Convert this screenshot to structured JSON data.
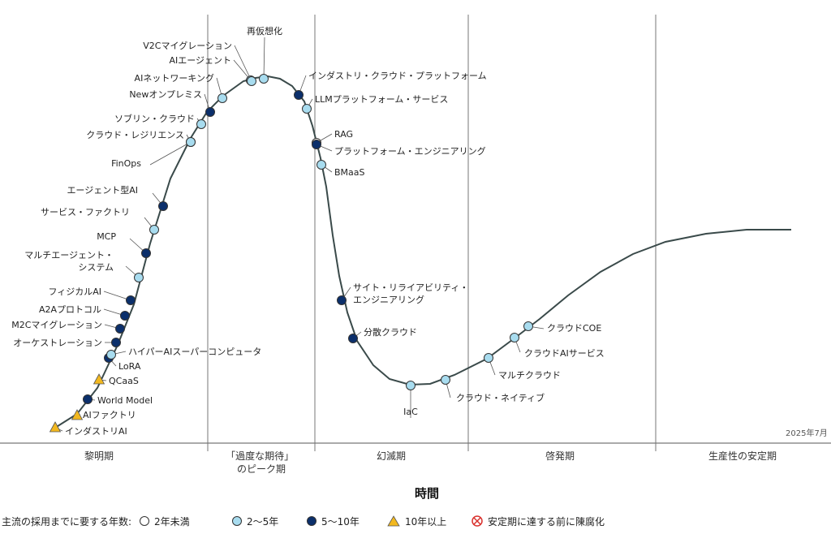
{
  "chart_data": {
    "type": "scatter",
    "xlabel": "時間",
    "date": "2025年7月",
    "phases": [
      {
        "label": "黎明期"
      },
      {
        "label": "「過度な期待」\nのピーク期"
      },
      {
        "label": "幻滅期"
      },
      {
        "label": "啓発期"
      },
      {
        "label": "生産性の安定期"
      }
    ],
    "legend": {
      "title": "主流の採用までに要する年数:",
      "items": [
        {
          "label": "2年未満",
          "key": "lt2"
        },
        {
          "label": "2〜5年",
          "key": "y2_5"
        },
        {
          "label": "5〜10年",
          "key": "y5_10"
        },
        {
          "label": "10年以上",
          "key": "gt10"
        },
        {
          "label": "安定期に達する前に陳腐化",
          "key": "obsolete"
        }
      ]
    },
    "colors": {
      "curve": "#3a4a4a",
      "lt2": "#ffffff",
      "y2_5": "#a8dcef",
      "y5_10": "#0b2f6b",
      "gt10": "#f2b81f",
      "obsolete": "#d9322e"
    },
    "points": [
      {
        "name": "インダストリAI",
        "category": "gt10"
      },
      {
        "name": "AIファクトリ",
        "category": "gt10"
      },
      {
        "name": "World Model",
        "category": "y5_10"
      },
      {
        "name": "QCaaS",
        "category": "gt10"
      },
      {
        "name": "LoRA",
        "category": "y5_10"
      },
      {
        "name": "ハイパーAIスーパーコンピュータ",
        "category": "y2_5"
      },
      {
        "name": "オーケストレーション",
        "category": "y5_10"
      },
      {
        "name": "M2Cマイグレーション",
        "category": "y5_10"
      },
      {
        "name": "A2Aプロトコル",
        "category": "y5_10"
      },
      {
        "name": "フィジカルAI",
        "category": "y5_10"
      },
      {
        "name": "マルチエージェント・\nシステム",
        "category": "y2_5"
      },
      {
        "name": "MCP",
        "category": "y5_10"
      },
      {
        "name": "サービス・ファクトリ",
        "category": "y2_5"
      },
      {
        "name": "エージェント型AI",
        "category": "y5_10"
      },
      {
        "name": "FinOps",
        "category": "y2_5"
      },
      {
        "name": "クラウド・レジリエンス",
        "category": "y2_5"
      },
      {
        "name": "ソブリン・クラウド",
        "category": "y2_5"
      },
      {
        "name": "Newオンプレミス",
        "category": "y5_10"
      },
      {
        "name": "AIネットワーキング",
        "category": "y2_5"
      },
      {
        "name": "AIエージェント",
        "category": "y2_5"
      },
      {
        "name": "V2Cマイグレーション",
        "category": "y2_5"
      },
      {
        "name": "再仮想化",
        "category": "y2_5"
      },
      {
        "name": "インダストリ・クラウド・プラットフォーム",
        "category": "y5_10"
      },
      {
        "name": "LLMプラットフォーム・サービス",
        "category": "y2_5"
      },
      {
        "name": "RAG",
        "category": "lt2"
      },
      {
        "name": "プラットフォーム・エンジニアリング",
        "category": "y5_10"
      },
      {
        "name": "BMaaS",
        "category": "y2_5"
      },
      {
        "name": "サイト・リライアビリティ・\nエンジニアリング",
        "category": "y5_10"
      },
      {
        "name": "分散クラウド",
        "category": "y5_10"
      },
      {
        "name": "IaC",
        "category": "y2_5"
      },
      {
        "name": "クラウド・ネイティブ",
        "category": "y2_5"
      },
      {
        "name": "マルチクラウド",
        "category": "y2_5"
      },
      {
        "name": "クラウドAIサービス",
        "category": "y2_5"
      },
      {
        "name": "クラウドCOE",
        "category": "y2_5"
      }
    ]
  }
}
